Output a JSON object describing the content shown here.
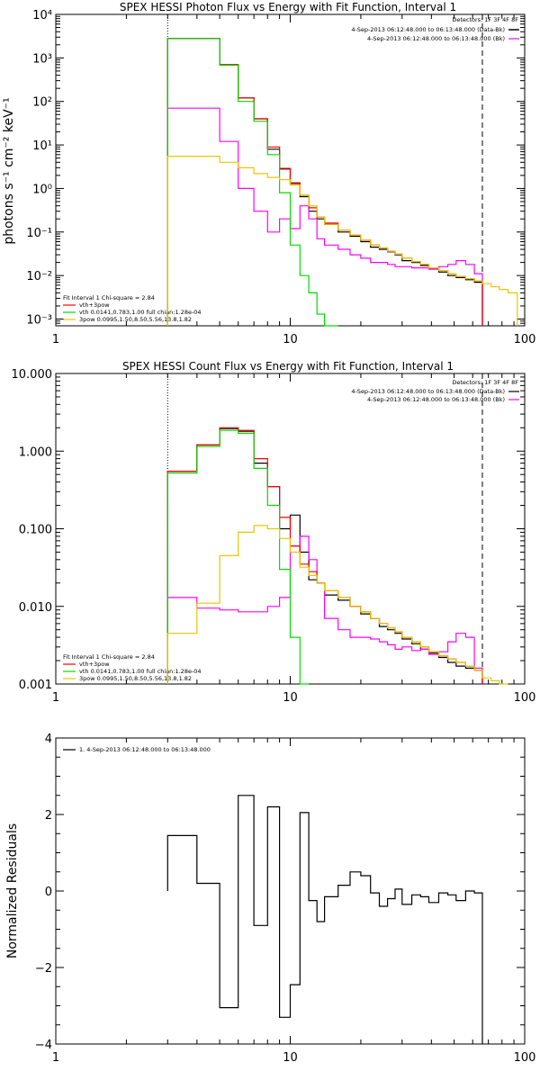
{
  "chart_data": [
    {
      "type": "line",
      "title": "SPEX HESSI Photon Flux vs Energy with Fit Function, Interval 1",
      "xlabel": "",
      "ylabel": "photons s⁻¹ cm⁻² keV⁻¹",
      "xscale": "log",
      "yscale": "log",
      "xlim": [
        1,
        100
      ],
      "ylim": [
        0.0007,
        10000
      ],
      "x_ticks": [
        1,
        10,
        100
      ],
      "x_tick_labels": [
        "1",
        "10",
        "100"
      ],
      "y_ticks": [
        0.001,
        0.01,
        0.1,
        1,
        10,
        100,
        1000,
        10000
      ],
      "y_tick_labels": [
        "10⁻³",
        "10⁻²",
        "10⁻¹",
        "10⁰",
        "10¹",
        "10²",
        "10³",
        "10⁴"
      ],
      "vlines": [
        {
          "x": 3.0,
          "style": "dotted"
        },
        {
          "x": 66.0,
          "style": "dashed"
        }
      ],
      "info_lines": [
        "Detectors: 1F 3F 4F 8F",
        "4-Sep-2013 06:12:48.000 to 06:13:48.000 (Data-Bk)",
        "4-Sep-2013 06:12:48.000 to 06:13:48.000 (Bk)"
      ],
      "legend_lines": [
        "Fit Interval  1     Chi-square = 2.84",
        "vth+3pow",
        "vth 0.0141,0.783,1.00  full chian:1.28e-04",
        "3pow 0.0995,1.50,8.50,5.56,13.8,1.82"
      ],
      "energy_edges": [
        3,
        4,
        5,
        6,
        7,
        8,
        9,
        10,
        11,
        12,
        13,
        14,
        16,
        18,
        20,
        22,
        24,
        26,
        28,
        30,
        33,
        36,
        39,
        43,
        47,
        51,
        56,
        61,
        66
      ],
      "series": [
        {
          "name": "Data-Bk",
          "color": "#000000",
          "style": "hist",
          "values": [
            2800,
            2800,
            700,
            120,
            40,
            8,
            2.8,
            1.3,
            0.65,
            0.3,
            0.2,
            0.15,
            0.1,
            0.08,
            0.06,
            0.045,
            0.04,
            0.035,
            0.03,
            0.022,
            0.02,
            0.017,
            0.015,
            0.012,
            0.01,
            0.009,
            0.008,
            0.007
          ]
        },
        {
          "name": "Bk",
          "color": "#ff00ff",
          "style": "hist",
          "values": [
            70,
            70,
            12,
            1.0,
            0.3,
            0.1,
            0.2,
            0.12,
            0.4,
            0.2,
            0.07,
            0.05,
            0.04,
            0.03,
            0.025,
            0.02,
            0.02,
            0.018,
            0.016,
            0.016,
            0.015,
            0.015,
            0.014,
            0.016,
            0.018,
            0.022,
            0.018,
            0.011
          ]
        },
        {
          "name": "vth+3pow",
          "color": "#ff0000",
          "style": "hist",
          "values": [
            2800,
            2800,
            700,
            120,
            40,
            9,
            2.9,
            1.35,
            0.7,
            0.36,
            0.22,
            0.16,
            0.11,
            0.085,
            0.065,
            0.05,
            0.043,
            0.036,
            0.031,
            0.025,
            0.021,
            0.018,
            0.015,
            0.013,
            0.011,
            0.0095,
            0.0085,
            0.0075
          ]
        },
        {
          "name": "vth",
          "color": "#00dd00",
          "style": "hist",
          "values": [
            2800,
            2800,
            680,
            100,
            35,
            6,
            0.8,
            0.05,
            0.01,
            0.004,
            0.0013,
            0.0004
          ]
        },
        {
          "name": "3pow",
          "color": "#e6c800",
          "style": "hist",
          "values": [
            5.5,
            5.5,
            4.0,
            3.0,
            2.2,
            1.8,
            1.6,
            1.2,
            0.7,
            0.4,
            0.22,
            0.15,
            0.11,
            0.085,
            0.065,
            0.05,
            0.043,
            0.036,
            0.031,
            0.025,
            0.021,
            0.018,
            0.015,
            0.013,
            0.011,
            0.0095,
            0.0085,
            0.0075,
            0.0065,
            0.0055,
            0.0048,
            0.004
          ]
        }
      ],
      "extra_edges_for_3pow": [
        66,
        72,
        78,
        85,
        93,
        100
      ]
    },
    {
      "type": "line",
      "title": "SPEX HESSI Count Flux vs Energy with Fit Function, Interval 1",
      "xlabel": "",
      "ylabel": "",
      "xscale": "log",
      "yscale": "log",
      "xlim": [
        1,
        100
      ],
      "ylim": [
        0.001,
        10
      ],
      "x_ticks": [
        1,
        10,
        100
      ],
      "x_tick_labels": [
        "1",
        "10",
        "100"
      ],
      "y_ticks": [
        0.001,
        0.01,
        0.1,
        1,
        10
      ],
      "y_tick_labels": [
        "0.001",
        "0.010",
        "0.100",
        "1.000",
        "10.000"
      ],
      "vlines": [
        {
          "x": 3.0,
          "style": "dotted"
        },
        {
          "x": 66.0,
          "style": "dashed"
        }
      ],
      "info_lines": [
        "Detectors: 1F 3F 4F 8F",
        "4-Sep-2013 06:12:48.000 to 06:13:48.000 (Data-Bk)",
        "4-Sep-2013 06:12:48.000 to 06:13:48.000 (Bk)"
      ],
      "legend_lines": [
        "Fit Interval  1     Chi-square = 2.84",
        "vth+3pow",
        "vth 0.0141,0.783,1.00  full chian:1.28e-04",
        "3pow 0.0995,1.50,8.50,5.56,13.8,1.82"
      ],
      "energy_edges": [
        3,
        4,
        5,
        6,
        7,
        8,
        9,
        10,
        11,
        12,
        13,
        14,
        16,
        18,
        20,
        22,
        24,
        26,
        28,
        30,
        33,
        36,
        39,
        43,
        47,
        51,
        56,
        61,
        66
      ],
      "series": [
        {
          "name": "Data-Bk",
          "color": "#000000",
          "style": "hist",
          "values": [
            0.55,
            1.2,
            1.95,
            1.8,
            0.7,
            0.35,
            0.1,
            0.15,
            0.05,
            0.022,
            0.02,
            0.014,
            0.012,
            0.01,
            0.008,
            0.007,
            0.0055,
            0.005,
            0.0045,
            0.0038,
            0.0033,
            0.0028,
            0.0025,
            0.0022,
            0.0019,
            0.0017,
            0.0016,
            0.0015
          ]
        },
        {
          "name": "Bk",
          "color": "#ff00ff",
          "style": "hist",
          "values": [
            0.013,
            0.0095,
            0.009,
            0.0085,
            0.0085,
            0.01,
            0.013,
            0.06,
            0.08,
            0.04,
            0.02,
            0.007,
            0.005,
            0.004,
            0.004,
            0.0038,
            0.0035,
            0.0032,
            0.0028,
            0.003,
            0.0027,
            0.0028,
            0.0024,
            0.0026,
            0.0035,
            0.0045,
            0.004,
            0.0016
          ]
        },
        {
          "name": "vth+3pow",
          "color": "#ff0000",
          "style": "hist",
          "values": [
            0.55,
            1.2,
            2.0,
            1.85,
            0.8,
            0.35,
            0.14,
            0.06,
            0.035,
            0.028,
            0.02,
            0.016,
            0.013,
            0.01,
            0.0085,
            0.007,
            0.006,
            0.0053,
            0.0047,
            0.004,
            0.0035,
            0.003,
            0.0026,
            0.0023,
            0.0021,
            0.0019,
            0.0017,
            0.0015
          ]
        },
        {
          "name": "vth",
          "color": "#00dd00",
          "style": "hist",
          "values": [
            0.52,
            1.15,
            1.85,
            1.7,
            0.6,
            0.2,
            0.03,
            0.004,
            0.001
          ]
        },
        {
          "name": "3pow",
          "color": "#e6c800",
          "style": "hist",
          "values": [
            0.0045,
            0.011,
            0.045,
            0.09,
            0.11,
            0.1,
            0.075,
            0.05,
            0.032,
            0.025,
            0.02,
            0.016,
            0.013,
            0.01,
            0.0085,
            0.007,
            0.006,
            0.0053,
            0.0047,
            0.004,
            0.0035,
            0.003,
            0.0026,
            0.0023,
            0.0021,
            0.0019,
            0.0017,
            0.0015,
            0.0012,
            0.0011,
            0.00095
          ]
        }
      ],
      "extra_edges_for_3pow": [
        66,
        72,
        78,
        85,
        93,
        100
      ]
    },
    {
      "type": "line",
      "title": "",
      "xlabel": "",
      "ylabel": "Normalized Residuals",
      "xscale": "log",
      "yscale": "linear",
      "xlim": [
        1,
        100
      ],
      "ylim": [
        -4,
        4
      ],
      "x_ticks": [
        1,
        10,
        100
      ],
      "x_tick_labels": [
        "1",
        "10",
        "100"
      ],
      "y_ticks": [
        -4,
        -2,
        0,
        2,
        4
      ],
      "y_tick_labels": [
        "−4",
        "−2",
        "0",
        "2",
        "4"
      ],
      "legend_lines": [
        "1.  4-Sep-2013 06:12:48.000 to 06:13:48.000"
      ],
      "energy_edges": [
        3,
        4,
        5,
        6,
        7,
        8,
        9,
        10,
        11,
        12,
        13,
        14,
        16,
        18,
        20,
        22,
        24,
        26,
        28,
        30,
        33,
        36,
        39,
        43,
        47,
        51,
        56,
        61,
        66
      ],
      "series": [
        {
          "name": "1.  4-Sep-2013 06:12:48.000 to 06:13:48.000",
          "color": "#000000",
          "style": "hist",
          "values": [
            1.45,
            0.2,
            -3.05,
            2.5,
            -0.9,
            2.2,
            -3.3,
            -2.45,
            2.05,
            -0.25,
            -0.8,
            -0.15,
            0.15,
            0.5,
            0.4,
            -0.05,
            -0.4,
            -0.2,
            0.05,
            -0.35,
            -0.1,
            -0.15,
            -0.3,
            -0.05,
            -0.1,
            -0.25,
            0.0,
            -0.05
          ]
        }
      ]
    }
  ]
}
